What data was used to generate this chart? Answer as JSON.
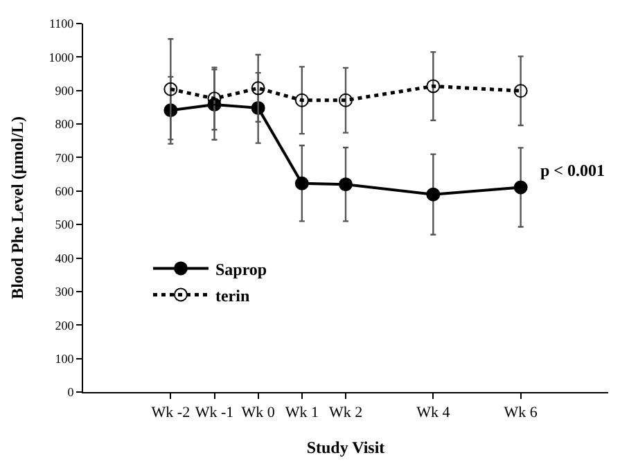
{
  "chart_data": {
    "type": "line",
    "xlabel": "Study Visit",
    "ylabel": "Blood Phe Level (µmol/L)",
    "x": [
      -2,
      -1,
      0,
      1,
      2,
      4,
      6
    ],
    "xlim": [
      -4,
      8
    ],
    "xticks": [
      {
        "value": -2,
        "label": "Wk -2"
      },
      {
        "value": -1,
        "label": "Wk -1"
      },
      {
        "value": 0,
        "label": "Wk 0"
      },
      {
        "value": 1,
        "label": "Wk 1"
      },
      {
        "value": 2,
        "label": "Wk 2"
      },
      {
        "value": 4,
        "label": "Wk 4"
      },
      {
        "value": 6,
        "label": "Wk 6"
      }
    ],
    "ylim": [
      0,
      1100
    ],
    "yticks": [
      0,
      100,
      200,
      300,
      400,
      500,
      600,
      700,
      800,
      900,
      1000,
      1100
    ],
    "series": [
      {
        "name": "Saprop",
        "color": "#000000",
        "values": [
          841,
          858,
          848,
          623,
          620,
          590,
          611
        ],
        "errors": [
          100,
          105,
          105,
          113,
          110,
          120,
          118
        ],
        "line_style": "solid",
        "marker": "circle"
      },
      {
        "name": "terin",
        "color": "#000000",
        "values": [
          904,
          876,
          907,
          871,
          871,
          913,
          899
        ],
        "errors": [
          150,
          93,
          100,
          100,
          97,
          102,
          103
        ],
        "line_style": "dotted",
        "marker": "circle-open"
      }
    ],
    "annotations": [
      "p < 0.001"
    ],
    "legend": "bottom left"
  }
}
